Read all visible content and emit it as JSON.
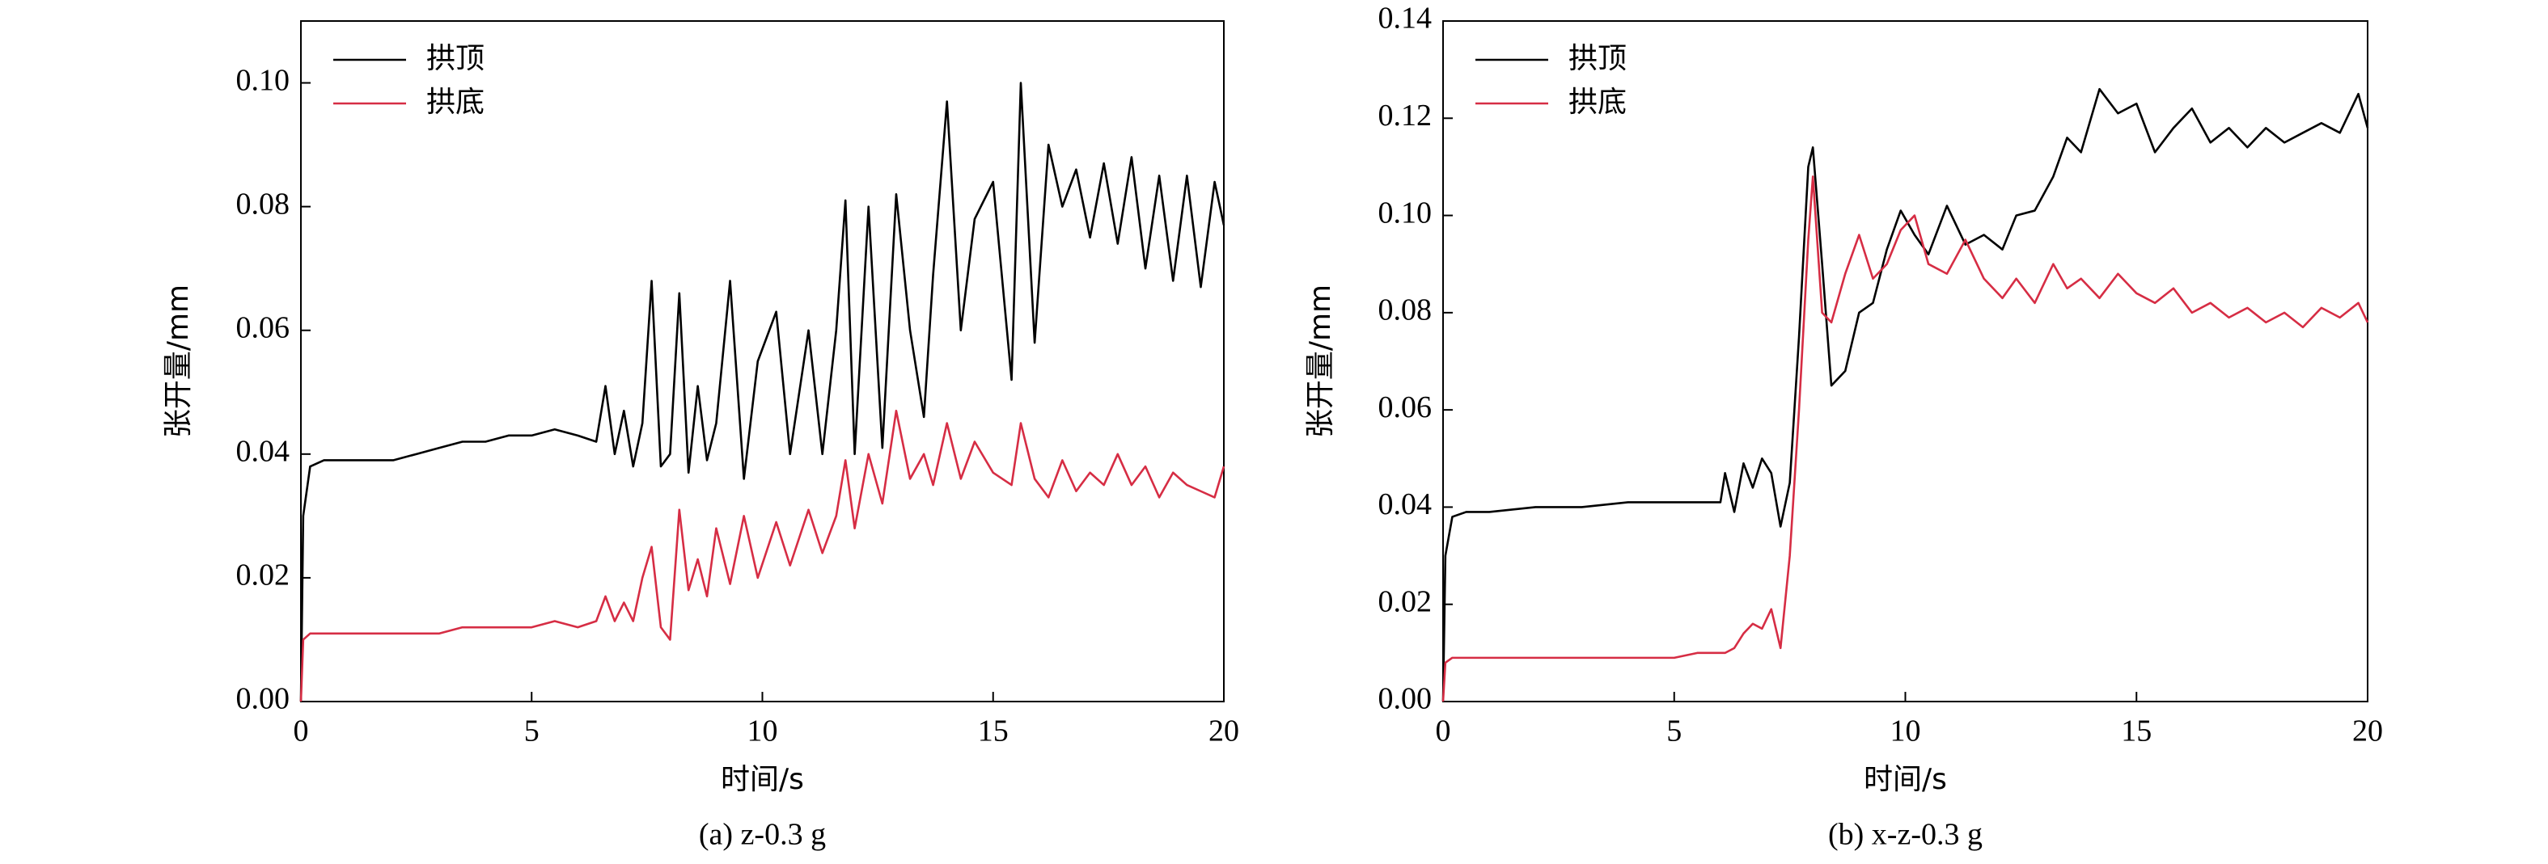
{
  "chart_data": [
    {
      "type": "line",
      "caption": "(a) z-0.3 g",
      "xlabel": "时间/s",
      "ylabel": "张开量/mm",
      "xlim": [
        0,
        20
      ],
      "xticks": [
        0,
        5,
        10,
        15,
        20
      ],
      "ylim": [
        0,
        0.11
      ],
      "yticks": [
        {
          "value": 0,
          "label": "0.00"
        },
        {
          "value": 0.02,
          "label": "0.02"
        },
        {
          "value": 0.04,
          "label": "0.04"
        },
        {
          "value": 0.06,
          "label": "0.06"
        },
        {
          "value": 0.08,
          "label": "0.08"
        },
        {
          "value": 0.1,
          "label": "0.10"
        }
      ],
      "legend": "upper left",
      "x": [
        0,
        0.05,
        0.2,
        0.5,
        1,
        2,
        2.5,
        3,
        3.5,
        4,
        4.5,
        5,
        5.5,
        6,
        6.4,
        6.6,
        6.8,
        7.0,
        7.2,
        7.4,
        7.6,
        7.8,
        8.0,
        8.2,
        8.4,
        8.6,
        8.8,
        9.0,
        9.3,
        9.6,
        9.9,
        10.3,
        10.6,
        11.0,
        11.3,
        11.6,
        11.8,
        12.0,
        12.3,
        12.6,
        12.9,
        13.2,
        13.5,
        13.7,
        14.0,
        14.3,
        14.6,
        15.0,
        15.4,
        15.6,
        15.9,
        16.2,
        16.5,
        16.8,
        17.1,
        17.4,
        17.7,
        18.0,
        18.3,
        18.6,
        18.9,
        19.2,
        19.5,
        19.8,
        20.0
      ],
      "series": [
        {
          "name": "拱顶",
          "color": "#000000",
          "values": [
            0,
            0.03,
            0.038,
            0.039,
            0.039,
            0.039,
            0.04,
            0.041,
            0.042,
            0.042,
            0.043,
            0.043,
            0.044,
            0.043,
            0.042,
            0.051,
            0.04,
            0.047,
            0.038,
            0.045,
            0.068,
            0.038,
            0.04,
            0.066,
            0.037,
            0.051,
            0.039,
            0.045,
            0.068,
            0.036,
            0.055,
            0.063,
            0.04,
            0.06,
            0.04,
            0.06,
            0.081,
            0.04,
            0.08,
            0.041,
            0.082,
            0.06,
            0.046,
            0.069,
            0.097,
            0.06,
            0.078,
            0.084,
            0.052,
            0.1,
            0.058,
            0.09,
            0.08,
            0.086,
            0.075,
            0.087,
            0.074,
            0.088,
            0.07,
            0.085,
            0.068,
            0.085,
            0.067,
            0.084,
            0.077
          ]
        },
        {
          "name": "拱底",
          "color": "#d62d44",
          "values": [
            0,
            0.01,
            0.011,
            0.011,
            0.011,
            0.011,
            0.011,
            0.011,
            0.012,
            0.012,
            0.012,
            0.012,
            0.013,
            0.012,
            0.013,
            0.017,
            0.013,
            0.016,
            0.013,
            0.02,
            0.025,
            0.012,
            0.01,
            0.031,
            0.018,
            0.023,
            0.017,
            0.028,
            0.019,
            0.03,
            0.02,
            0.029,
            0.022,
            0.031,
            0.024,
            0.03,
            0.039,
            0.028,
            0.04,
            0.032,
            0.047,
            0.036,
            0.04,
            0.035,
            0.045,
            0.036,
            0.042,
            0.037,
            0.035,
            0.045,
            0.036,
            0.033,
            0.039,
            0.034,
            0.037,
            0.035,
            0.04,
            0.035,
            0.038,
            0.033,
            0.037,
            0.035,
            0.034,
            0.033,
            0.038
          ]
        }
      ]
    },
    {
      "type": "line",
      "caption": "(b) x-z-0.3 g",
      "xlabel": "时间/s",
      "ylabel": "张开量/mm",
      "xlim": [
        0,
        20
      ],
      "xticks": [
        0,
        5,
        10,
        15,
        20
      ],
      "ylim": [
        0,
        0.14
      ],
      "yticks": [
        {
          "value": 0,
          "label": "0.00"
        },
        {
          "value": 0.02,
          "label": "0.02"
        },
        {
          "value": 0.04,
          "label": "0.04"
        },
        {
          "value": 0.06,
          "label": "0.06"
        },
        {
          "value": 0.08,
          "label": "0.08"
        },
        {
          "value": 0.1,
          "label": "0.10"
        },
        {
          "value": 0.12,
          "label": "0.12"
        },
        {
          "value": 0.14,
          "label": "0.14"
        }
      ],
      "legend": "upper left",
      "x": [
        0,
        0.05,
        0.2,
        0.5,
        1,
        2,
        3,
        4,
        5,
        5.5,
        6.0,
        6.1,
        6.3,
        6.5,
        6.7,
        6.9,
        7.1,
        7.3,
        7.5,
        7.7,
        7.9,
        8.0,
        8.2,
        8.4,
        8.7,
        9.0,
        9.3,
        9.6,
        9.9,
        10.2,
        10.5,
        10.9,
        11.3,
        11.7,
        12.1,
        12.4,
        12.8,
        13.2,
        13.5,
        13.8,
        14.2,
        14.6,
        15.0,
        15.4,
        15.8,
        16.2,
        16.6,
        17.0,
        17.4,
        17.8,
        18.2,
        18.6,
        19.0,
        19.4,
        19.8,
        20.0
      ],
      "series": [
        {
          "name": "拱顶",
          "color": "#000000",
          "values": [
            0,
            0.03,
            0.038,
            0.039,
            0.039,
            0.04,
            0.04,
            0.041,
            0.041,
            0.041,
            0.041,
            0.047,
            0.039,
            0.049,
            0.044,
            0.05,
            0.047,
            0.036,
            0.045,
            0.075,
            0.11,
            0.114,
            0.09,
            0.065,
            0.068,
            0.08,
            0.082,
            0.093,
            0.101,
            0.096,
            0.092,
            0.102,
            0.094,
            0.096,
            0.093,
            0.1,
            0.101,
            0.108,
            0.116,
            0.113,
            0.126,
            0.121,
            0.123,
            0.113,
            0.118,
            0.122,
            0.115,
            0.118,
            0.114,
            0.118,
            0.115,
            0.117,
            0.119,
            0.117,
            0.125,
            0.118
          ]
        },
        {
          "name": "拱底",
          "color": "#d62d44",
          "values": [
            0,
            0.008,
            0.009,
            0.009,
            0.009,
            0.009,
            0.009,
            0.009,
            0.009,
            0.01,
            0.01,
            0.01,
            0.011,
            0.014,
            0.016,
            0.015,
            0.019,
            0.011,
            0.03,
            0.06,
            0.095,
            0.108,
            0.08,
            0.078,
            0.088,
            0.096,
            0.087,
            0.09,
            0.097,
            0.1,
            0.09,
            0.088,
            0.095,
            0.087,
            0.083,
            0.087,
            0.082,
            0.09,
            0.085,
            0.087,
            0.083,
            0.088,
            0.084,
            0.082,
            0.085,
            0.08,
            0.082,
            0.079,
            0.081,
            0.078,
            0.08,
            0.077,
            0.081,
            0.079,
            0.082,
            0.078
          ]
        }
      ]
    }
  ]
}
